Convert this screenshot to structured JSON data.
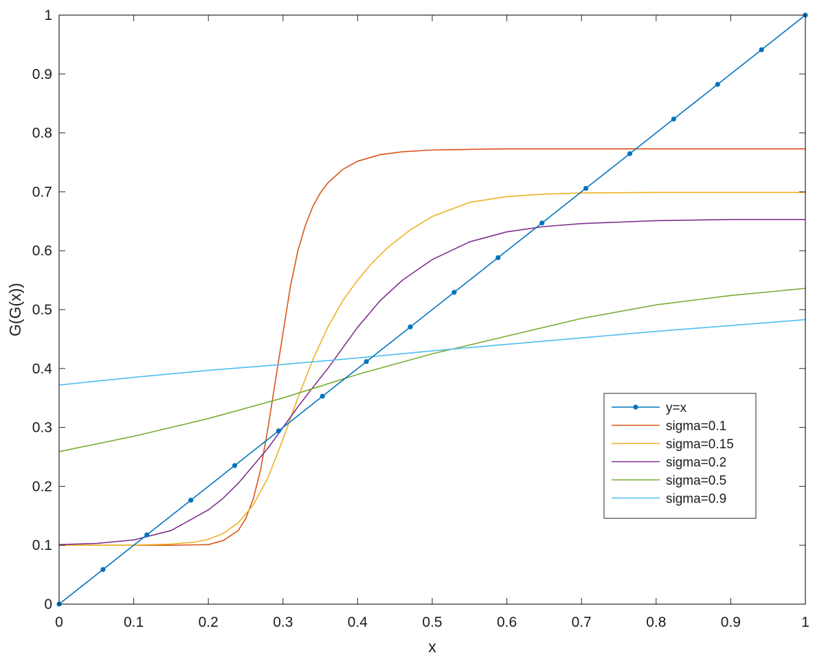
{
  "chart_data": {
    "type": "line",
    "title": "",
    "xlabel": "x",
    "ylabel": "G(G(x))",
    "xlim": [
      0,
      1
    ],
    "ylim": [
      0,
      1
    ],
    "xticks": [
      0,
      0.1,
      0.2,
      0.3,
      0.4,
      0.5,
      0.6,
      0.7,
      0.8,
      0.9,
      1
    ],
    "yticks": [
      0,
      0.1,
      0.2,
      0.3,
      0.4,
      0.5,
      0.6,
      0.7,
      0.8,
      0.9,
      1
    ],
    "xtick_labels": [
      "0",
      "0.1",
      "0.2",
      "0.3",
      "0.4",
      "0.5",
      "0.6",
      "0.7",
      "0.8",
      "0.9",
      "1"
    ],
    "ytick_labels": [
      "0",
      "0.1",
      "0.2",
      "0.3",
      "0.4",
      "0.5",
      "0.6",
      "0.7",
      "0.8",
      "0.9",
      "1"
    ],
    "grid": false,
    "legend_position": "lower-right",
    "series": [
      {
        "name": "y=x",
        "color": "#0072BD",
        "marker": "dot",
        "x": [
          0,
          0.0588,
          0.1176,
          0.1765,
          0.2353,
          0.2941,
          0.3529,
          0.4118,
          0.4706,
          0.5294,
          0.5882,
          0.6471,
          0.7059,
          0.7647,
          0.8235,
          0.8824,
          0.9412,
          1.0
        ],
        "y": [
          0,
          0.0588,
          0.1176,
          0.1765,
          0.2353,
          0.2941,
          0.3529,
          0.4118,
          0.4706,
          0.5294,
          0.5882,
          0.6471,
          0.7059,
          0.7647,
          0.8235,
          0.8824,
          0.9412,
          1.0
        ]
      },
      {
        "name": "sigma=0.1",
        "color": "#D95319",
        "marker": "none",
        "x": [
          0,
          0.05,
          0.1,
          0.15,
          0.2,
          0.22,
          0.24,
          0.25,
          0.26,
          0.27,
          0.28,
          0.29,
          0.3,
          0.31,
          0.32,
          0.33,
          0.34,
          0.35,
          0.36,
          0.38,
          0.4,
          0.43,
          0.46,
          0.5,
          0.55,
          0.6,
          0.7,
          0.8,
          0.9,
          1.0
        ],
        "y": [
          0.1,
          0.1,
          0.1,
          0.1,
          0.101,
          0.108,
          0.125,
          0.145,
          0.178,
          0.228,
          0.3,
          0.38,
          0.46,
          0.54,
          0.6,
          0.643,
          0.675,
          0.698,
          0.715,
          0.738,
          0.752,
          0.763,
          0.768,
          0.771,
          0.772,
          0.773,
          0.773,
          0.773,
          0.773,
          0.773
        ]
      },
      {
        "name": "sigma=0.15",
        "color": "#EDB120",
        "marker": "none",
        "x": [
          0,
          0.05,
          0.1,
          0.15,
          0.18,
          0.2,
          0.22,
          0.24,
          0.26,
          0.28,
          0.3,
          0.32,
          0.34,
          0.36,
          0.38,
          0.4,
          0.42,
          0.44,
          0.47,
          0.5,
          0.55,
          0.6,
          0.65,
          0.7,
          0.8,
          0.9,
          1.0
        ],
        "y": [
          0.1,
          0.1,
          0.1,
          0.102,
          0.105,
          0.11,
          0.12,
          0.138,
          0.168,
          0.215,
          0.28,
          0.35,
          0.415,
          0.47,
          0.515,
          0.55,
          0.58,
          0.605,
          0.635,
          0.658,
          0.682,
          0.692,
          0.696,
          0.698,
          0.699,
          0.699,
          0.699
        ]
      },
      {
        "name": "sigma=0.2",
        "color": "#7E2F8E",
        "marker": "none",
        "x": [
          0,
          0.05,
          0.1,
          0.15,
          0.2,
          0.22,
          0.24,
          0.26,
          0.28,
          0.3,
          0.32,
          0.34,
          0.36,
          0.38,
          0.4,
          0.43,
          0.46,
          0.5,
          0.55,
          0.6,
          0.65,
          0.7,
          0.8,
          0.9,
          1.0
        ],
        "y": [
          0.101,
          0.103,
          0.109,
          0.125,
          0.16,
          0.18,
          0.205,
          0.235,
          0.265,
          0.3,
          0.335,
          0.368,
          0.4,
          0.435,
          0.47,
          0.515,
          0.55,
          0.585,
          0.615,
          0.632,
          0.641,
          0.646,
          0.651,
          0.653,
          0.653
        ]
      },
      {
        "name": "sigma=0.5",
        "color": "#77AC30",
        "marker": "none",
        "x": [
          0,
          0.1,
          0.2,
          0.3,
          0.4,
          0.5,
          0.6,
          0.7,
          0.8,
          0.9,
          1.0
        ],
        "y": [
          0.259,
          0.285,
          0.315,
          0.35,
          0.39,
          0.425,
          0.455,
          0.485,
          0.508,
          0.524,
          0.536
        ]
      },
      {
        "name": "sigma=0.9",
        "color": "#4DBEEE",
        "marker": "none",
        "x": [
          0,
          0.1,
          0.2,
          0.3,
          0.4,
          0.5,
          0.6,
          0.7,
          0.8,
          0.9,
          1.0
        ],
        "y": [
          0.372,
          0.385,
          0.397,
          0.407,
          0.418,
          0.43,
          0.441,
          0.452,
          0.463,
          0.473,
          0.483
        ]
      }
    ]
  }
}
